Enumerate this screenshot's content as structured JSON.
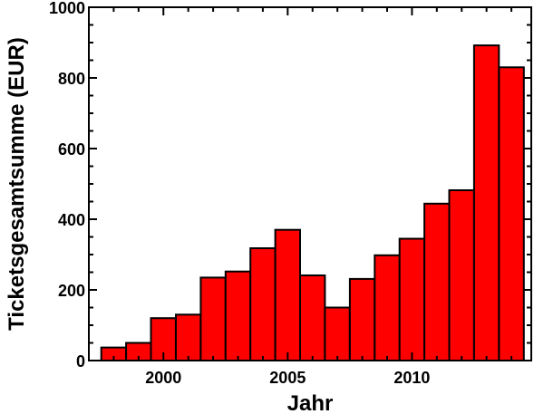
{
  "chart_data": {
    "type": "bar",
    "xlabel": "Jahr",
    "ylabel": "Ticketsgesamtsumme (EUR)",
    "xlim": [
      1997,
      2014.8
    ],
    "ylim": [
      0,
      1000
    ],
    "x_major_ticks": [
      2000,
      2005,
      2010
    ],
    "x_tick_labels": [
      "2000",
      "2005",
      "2010"
    ],
    "y_major_ticks": [
      0,
      200,
      400,
      600,
      800,
      1000
    ],
    "y_tick_labels": [
      "0",
      "200",
      "400",
      "600",
      "800",
      "1000"
    ],
    "categories": [
      1998,
      1999,
      2000,
      2001,
      2002,
      2003,
      2004,
      2005,
      2006,
      2007,
      2008,
      2009,
      2010,
      2011,
      2012,
      2013,
      2014
    ],
    "values": [
      37,
      50,
      120,
      130,
      235,
      252,
      318,
      370,
      241,
      150,
      231,
      298,
      345,
      444,
      482,
      892,
      830
    ],
    "bar_color": "#ff0000",
    "grid": false,
    "legend": "none"
  }
}
